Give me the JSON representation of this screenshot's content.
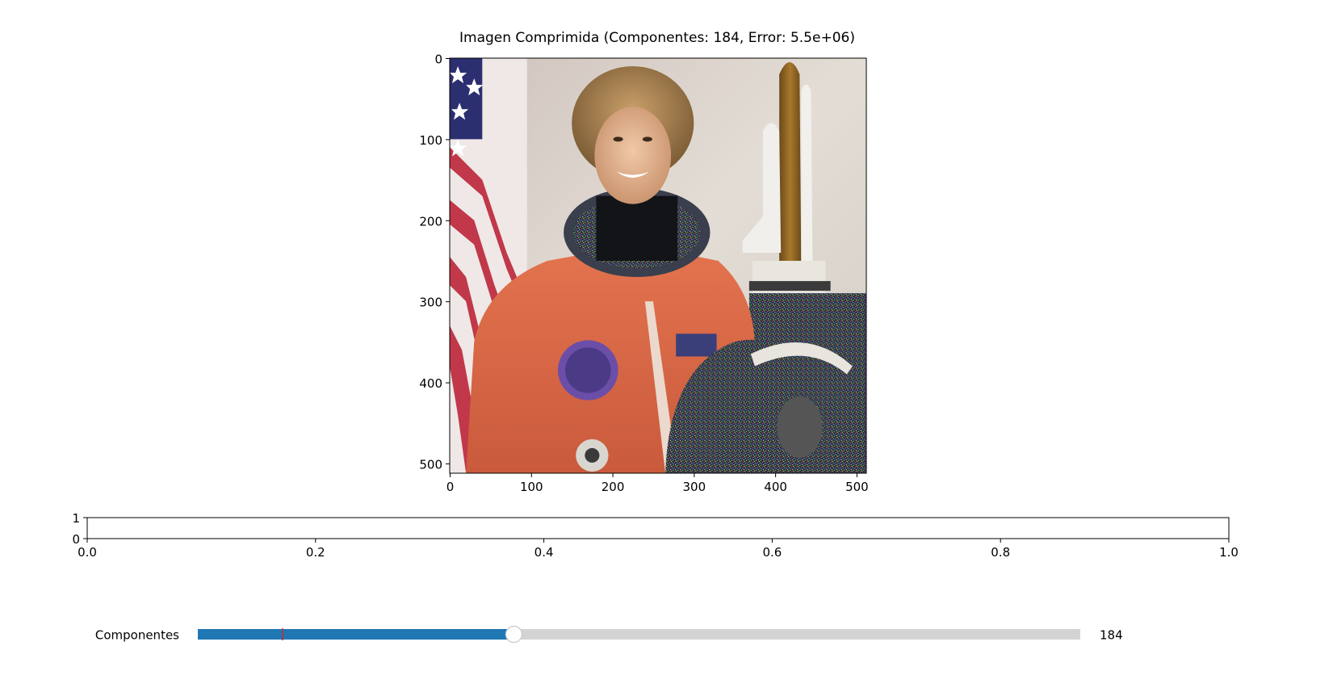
{
  "figure": {
    "title": "Imagen Comprimida (Componentes: 184, Error: 5.5e+06)"
  },
  "chart_data": [
    {
      "type": "image",
      "title": "Imagen Comprimida (Componentes: 184, Error: 5.5e+06)",
      "image_description": "astronaut",
      "xlim": [
        -0.5,
        511.5
      ],
      "ylim": [
        511.5,
        -0.5
      ],
      "x_ticks": [
        0,
        100,
        200,
        300,
        400,
        500
      ],
      "y_ticks": [
        0,
        100,
        200,
        300,
        400,
        500
      ],
      "grid": false
    },
    {
      "type": "empty-axes",
      "xlim": [
        0.0,
        1.0
      ],
      "ylim": [
        0,
        1
      ],
      "x_ticks": [
        "0.0",
        "0.2",
        "0.4",
        "0.6",
        "0.8",
        "1.0"
      ],
      "y_ticks": [
        "0",
        "1"
      ],
      "grid": false
    }
  ],
  "slider": {
    "label": "Componentes",
    "value": 184,
    "value_text": "184",
    "min": 1,
    "max": 512,
    "initial": 50,
    "fill_color": "#1f77b4",
    "track_color": "#d3d3d3",
    "marker_color": "#d62728"
  },
  "colors": {
    "background": "#ffffff",
    "axes": "#000000"
  }
}
